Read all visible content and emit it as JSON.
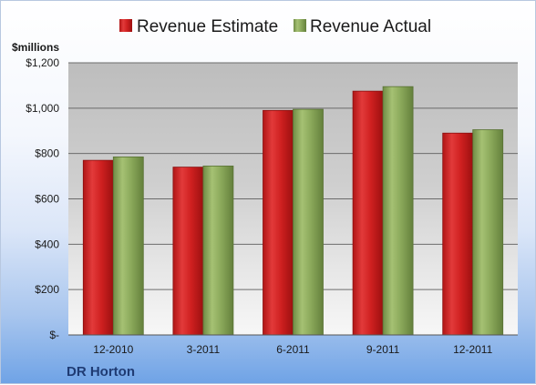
{
  "chart_data": {
    "type": "bar",
    "title": "",
    "subtitle": "",
    "ylabel": "$millions",
    "xlabel": "",
    "company": "DR Horton",
    "categories": [
      "12-2010",
      "3-2011",
      "6-2011",
      "9-2011",
      "12-2011"
    ],
    "series": [
      {
        "name": "Revenue Estimate",
        "color": "#cc1d1d",
        "values": [
          770,
          740,
          990,
          1075,
          890
        ]
      },
      {
        "name": "Revenue Actual",
        "color": "#8aa85a",
        "values": [
          785,
          745,
          995,
          1095,
          905
        ]
      }
    ],
    "ylim": [
      0,
      1200
    ],
    "yticks": [
      0,
      200,
      400,
      600,
      800,
      1000,
      1200
    ],
    "ytick_labels": [
      "$-",
      "$200",
      "$400",
      "$600",
      "$800",
      "$1,000",
      "$1,200"
    ],
    "grid": true,
    "legend_position": "top"
  }
}
